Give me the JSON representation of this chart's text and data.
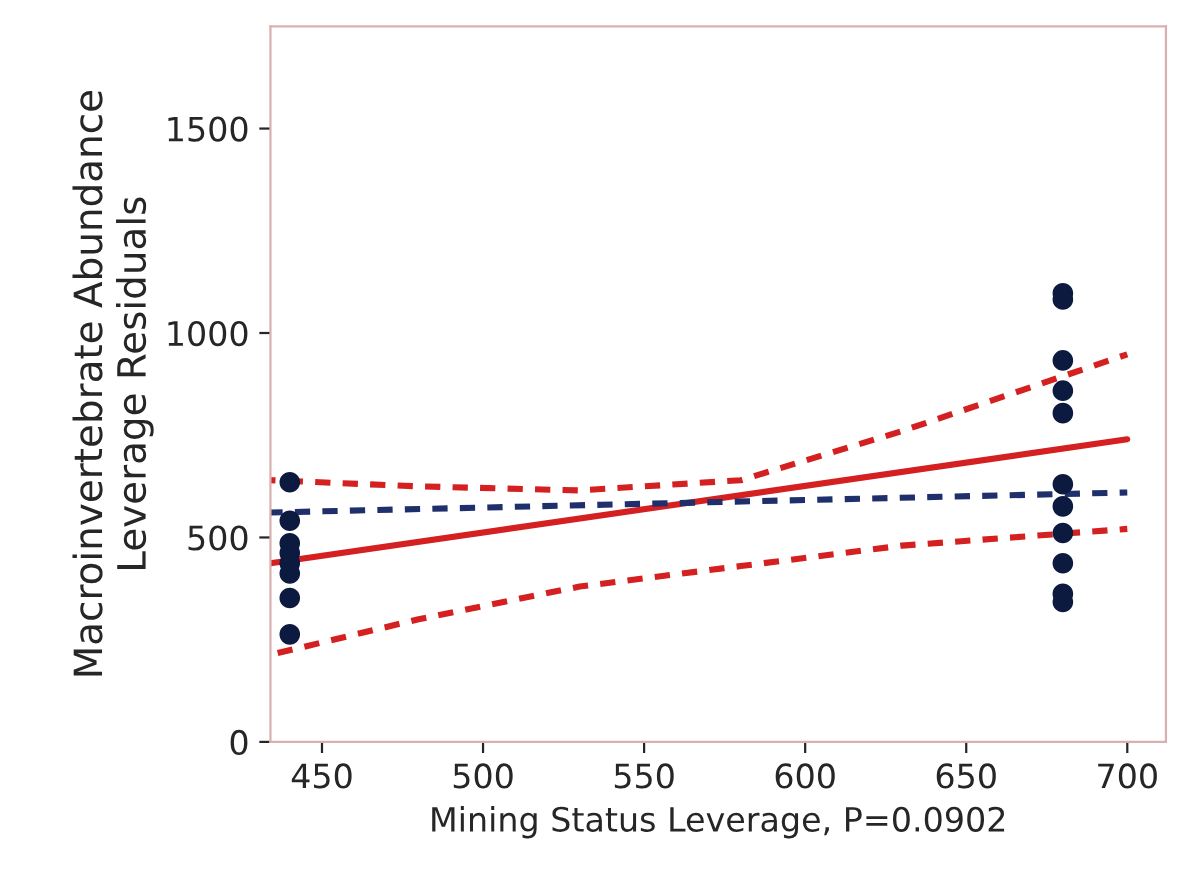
{
  "chart_data": {
    "type": "scatter",
    "xlabel": "Mining Status Leverage, P=0.0902",
    "ylabel": "Macroinvertebrate Abundance\nLeverage Residuals",
    "xlim": [
      434,
      712
    ],
    "ylim": [
      0,
      1750
    ],
    "xticks": [
      450,
      500,
      550,
      600,
      650,
      700
    ],
    "yticks": [
      0,
      500,
      1000,
      1500
    ],
    "grid": false,
    "legend": false,
    "series": [
      {
        "color": "#0d1a40",
        "marker": "circle",
        "x": [
          440,
          440,
          440,
          440,
          440,
          440,
          440,
          440,
          680,
          680,
          680,
          680,
          680,
          680,
          680,
          680,
          680,
          680,
          680
        ],
        "values": [
          635,
          541,
          486,
          462,
          437,
          412,
          352,
          263,
          1097,
          1082,
          933,
          859,
          804,
          630,
          576,
          511,
          437,
          362,
          342
        ]
      },
      {
        "type": "line",
        "color": "#d42020",
        "line_style": "solid",
        "x": [
          434,
          700
        ],
        "values": [
          437,
          740
        ]
      },
      {
        "type": "line",
        "color": "#d42020",
        "line_style": "dashed",
        "x": [
          434,
          480,
          530,
          580,
          630,
          700
        ],
        "values": [
          640,
          625,
          615,
          640,
          760,
          948
        ]
      },
      {
        "type": "line",
        "color": "#d42020",
        "line_style": "dashed",
        "x": [
          434,
          480,
          530,
          580,
          630,
          700
        ],
        "values": [
          213,
          300,
          380,
          430,
          480,
          521
        ]
      },
      {
        "type": "line",
        "color": "#1f2f6b",
        "line_style": "dashed",
        "x": [
          434,
          700
        ],
        "values": [
          561,
          610
        ]
      }
    ]
  }
}
